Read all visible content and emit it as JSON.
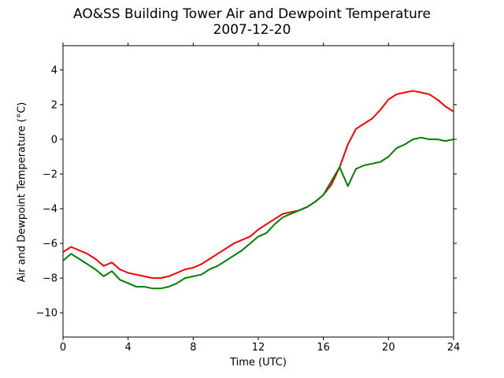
{
  "chart_data": {
    "type": "line",
    "title": "AO&SS Building Tower Air and Dewpoint Temperature",
    "subtitle": "2007-12-20",
    "xlabel": "Time (UTC)",
    "ylabel": "Air and Dewpoint Temperature (°C)",
    "xlim": [
      0,
      24
    ],
    "ylim": [
      -11.4,
      5.4
    ],
    "xticks": [
      0,
      4,
      8,
      12,
      16,
      20,
      24
    ],
    "xtick_labels": [
      "0",
      "4",
      "8",
      "12",
      "16",
      "20",
      "24"
    ],
    "yticks": [
      4,
      2,
      0,
      -2,
      -4,
      -6,
      -8,
      -10
    ],
    "ytick_labels": [
      "4",
      "2",
      "0",
      "−2",
      "−4",
      "−6",
      "−8",
      "−10"
    ],
    "grid": false,
    "legend": "none",
    "x": [
      0,
      0.5,
      1,
      1.5,
      2,
      2.5,
      3,
      3.5,
      4,
      4.5,
      5,
      5.5,
      6,
      6.5,
      7,
      7.5,
      8,
      8.5,
      9,
      9.5,
      10,
      10.5,
      11,
      11.5,
      12,
      12.5,
      13,
      13.5,
      14,
      14.5,
      15,
      15.5,
      16,
      16.5,
      17,
      17.5,
      18,
      18.5,
      19,
      19.5,
      20,
      20.5,
      21,
      21.5,
      22,
      22.5,
      23,
      23.5,
      24
    ],
    "series": [
      {
        "color": "#ff0000",
        "values": [
          -6.5,
          -6.2,
          -6.4,
          -6.6,
          -6.9,
          -7.3,
          -7.1,
          -7.5,
          -7.7,
          -7.8,
          -7.9,
          -8.0,
          -8.0,
          -7.9,
          -7.7,
          -7.5,
          -7.4,
          -7.2,
          -6.9,
          -6.6,
          -6.3,
          -6.0,
          -5.8,
          -5.6,
          -5.2,
          -4.9,
          -4.6,
          -4.3,
          -4.2,
          -4.1,
          -3.9,
          -3.6,
          -3.2,
          -2.6,
          -1.6,
          -0.3,
          0.6,
          0.9,
          1.2,
          1.7,
          2.3,
          2.6,
          2.7,
          2.8,
          2.7,
          2.6,
          2.3,
          1.9,
          1.6
        ]
      },
      {
        "color": "#008000",
        "values": [
          -7.0,
          -6.6,
          -6.9,
          -7.2,
          -7.5,
          -7.9,
          -7.6,
          -8.1,
          -8.3,
          -8.5,
          -8.5,
          -8.6,
          -8.6,
          -8.5,
          -8.3,
          -8.0,
          -7.9,
          -7.8,
          -7.5,
          -7.3,
          -7.0,
          -6.7,
          -6.4,
          -6.0,
          -5.6,
          -5.4,
          -4.9,
          -4.5,
          -4.3,
          -4.1,
          -3.9,
          -3.6,
          -3.2,
          -2.4,
          -1.6,
          -2.7,
          -1.7,
          -1.5,
          -1.4,
          -1.3,
          -1.0,
          -0.5,
          -0.3,
          0.0,
          0.1,
          0.0,
          0.0,
          -0.1,
          0.0
        ]
      }
    ]
  }
}
